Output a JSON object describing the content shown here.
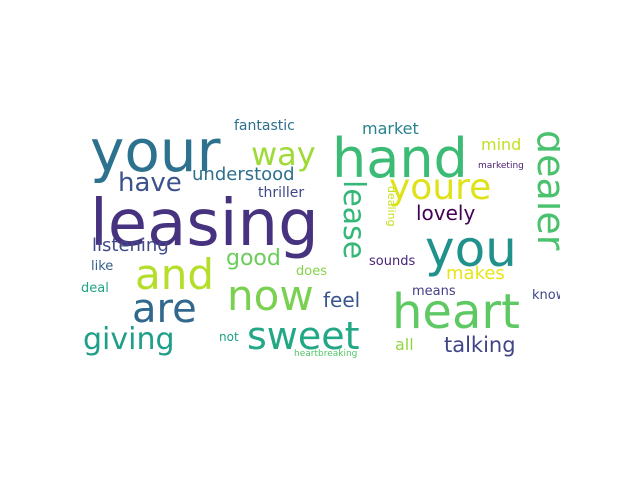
{
  "word_cloud": {
    "words": [
      {
        "text": "your",
        "color": "#2c728e"
      },
      {
        "text": "hand",
        "color": "#3cbb75"
      },
      {
        "text": "leasing",
        "color": "#46327e"
      },
      {
        "text": "you",
        "color": "#21918c"
      },
      {
        "text": "and",
        "color": "#b5de2b"
      },
      {
        "text": "now",
        "color": "#7ad151"
      },
      {
        "text": "heart",
        "color": "#5ec962"
      },
      {
        "text": "sweet",
        "color": "#22a884"
      },
      {
        "text": "are",
        "color": "#31688e"
      },
      {
        "text": "youre",
        "color": "#dde318"
      },
      {
        "text": "dealer",
        "color": "#4ac16d"
      },
      {
        "text": "lease",
        "color": "#35b779"
      },
      {
        "text": "way",
        "color": "#a0da39"
      },
      {
        "text": "giving",
        "color": "#1f9e89"
      },
      {
        "text": "have",
        "color": "#3b528b"
      },
      {
        "text": "lovely",
        "color": "#440154"
      },
      {
        "text": "talking",
        "color": "#414487"
      },
      {
        "text": "feel",
        "color": "#39568c"
      },
      {
        "text": "good",
        "color": "#6ccd5a"
      },
      {
        "text": "listening",
        "color": "#3e4a89"
      },
      {
        "text": "understood",
        "color": "#2e6f8e"
      },
      {
        "text": "makes",
        "color": "#e7e419"
      },
      {
        "text": "market",
        "color": "#26828e"
      },
      {
        "text": "mind",
        "color": "#c2df23"
      },
      {
        "text": "fantastic",
        "color": "#2d708e"
      },
      {
        "text": "all",
        "color": "#93d741"
      },
      {
        "text": "thriller",
        "color": "#3f4889"
      },
      {
        "text": "sounds",
        "color": "#482475"
      },
      {
        "text": "dealing",
        "color": "#c8e020"
      },
      {
        "text": "like",
        "color": "#355f8d"
      },
      {
        "text": "deal",
        "color": "#20a486"
      },
      {
        "text": "does",
        "color": "#84d44b"
      },
      {
        "text": "means",
        "color": "#433e85"
      },
      {
        "text": "know",
        "color": "#404688"
      },
      {
        "text": "not",
        "color": "#1fa188"
      },
      {
        "text": "marketing",
        "color": "#481f70"
      },
      {
        "text": "heartbreaking",
        "color": "#52c569"
      }
    ]
  }
}
